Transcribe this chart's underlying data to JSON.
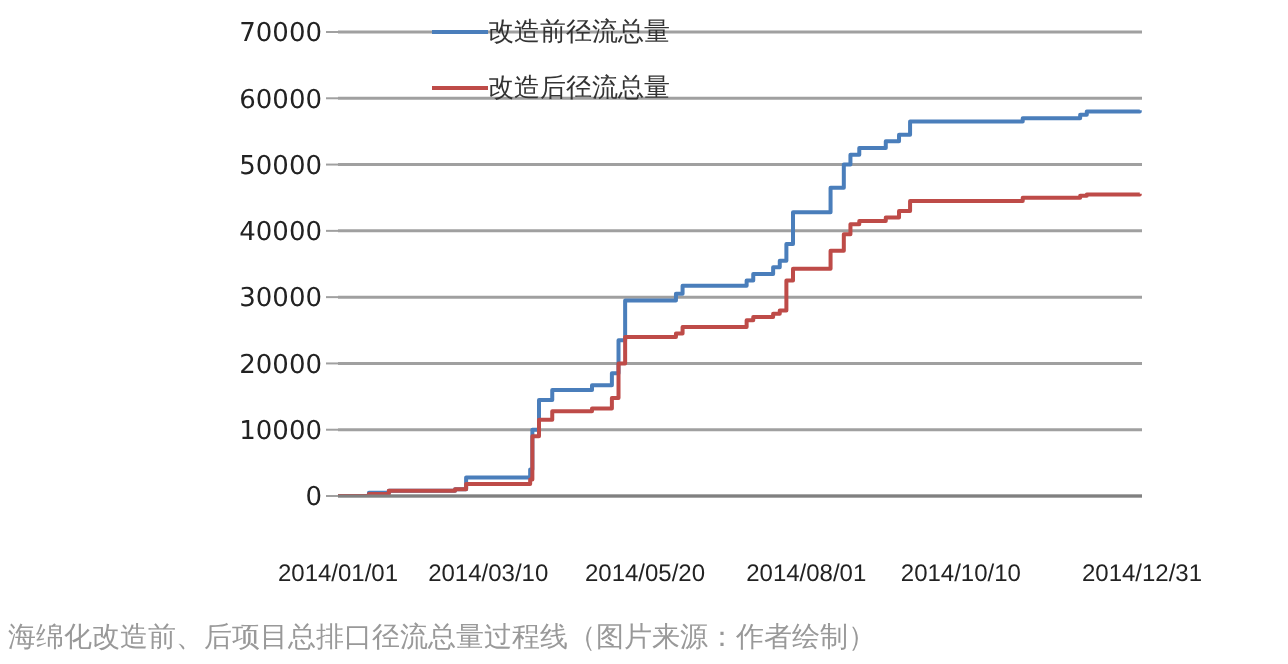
{
  "chart_data": {
    "type": "step",
    "x": [
      "2014-01-01",
      "2014-01-15",
      "2014-01-24",
      "2014-02-23",
      "2014-02-28",
      "2014-03-29",
      "2014-03-30",
      "2014-04-02",
      "2014-04-08",
      "2014-04-26",
      "2014-05-05",
      "2014-05-08",
      "2014-05-11",
      "2014-06-03",
      "2014-06-06",
      "2014-07-05",
      "2014-07-08",
      "2014-07-17",
      "2014-07-20",
      "2014-07-23",
      "2014-07-26",
      "2014-08-12",
      "2014-08-18",
      "2014-08-21",
      "2014-08-25",
      "2014-09-06",
      "2014-09-12",
      "2014-09-17",
      "2014-11-07",
      "2014-12-03",
      "2014-12-06",
      "2014-12-30"
    ],
    "series": [
      {
        "name": "改造前径流总量",
        "color": "#4a7ebb",
        "values": [
          0,
          500,
          800,
          1000,
          2800,
          4000,
          10000,
          14500,
          16000,
          16700,
          18500,
          23500,
          29500,
          30500,
          31700,
          32500,
          33500,
          34500,
          35500,
          38000,
          42800,
          46500,
          50000,
          51500,
          52500,
          53500,
          54500,
          56500,
          57000,
          57500,
          58000,
          58200
        ]
      },
      {
        "name": "改造后径流总量",
        "color": "#be4b48",
        "values": [
          0,
          300,
          800,
          1000,
          1800,
          2500,
          9000,
          11500,
          12800,
          13200,
          14800,
          20000,
          24000,
          24500,
          25500,
          26500,
          27000,
          27500,
          28000,
          32500,
          34300,
          37000,
          39500,
          41000,
          41500,
          42000,
          43000,
          44500,
          45000,
          45300,
          45500,
          45600
        ]
      }
    ],
    "xlim": [
      "2014-01-01",
      "2014-12-31"
    ],
    "xticks": [
      {
        "value": "2014-01-01",
        "label": "2014/01/01"
      },
      {
        "value": "2014-03-10",
        "label": "2014/03/10"
      },
      {
        "value": "2014-05-20",
        "label": "2014/05/20"
      },
      {
        "value": "2014-08-01",
        "label": "2014/08/01"
      },
      {
        "value": "2014-10-10",
        "label": "2014/10/10"
      },
      {
        "value": "2014-12-31",
        "label": "2014/12/31"
      }
    ],
    "ylim": [
      0,
      70000
    ],
    "yticks": [
      0,
      10000,
      20000,
      30000,
      40000,
      50000,
      60000,
      70000
    ],
    "grid": "y",
    "legend": "top left",
    "annotations": [
      "海绵化改造前、后项目总排口径流总量过程线（图片来源：作者绘制）"
    ]
  }
}
